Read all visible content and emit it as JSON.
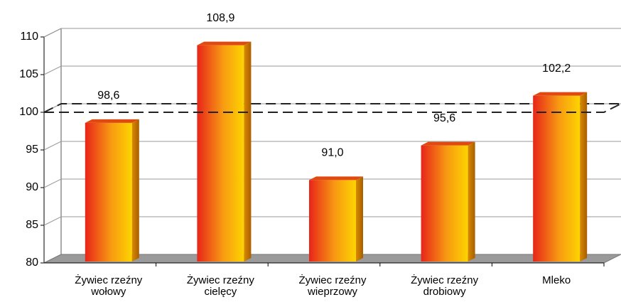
{
  "chart_data": {
    "type": "bar3d",
    "categories": [
      "Żywiec rzeźny wołowy",
      "Żywiec rzeźny cielęcy",
      "Żywiec rzeźny wieprzowy",
      "Żywiec rzeźny drobiowy",
      "Mleko"
    ],
    "values": [
      98.6,
      108.9,
      91.0,
      95.6,
      102.2
    ],
    "value_labels": [
      "98,6",
      "108,9",
      "91,0",
      "95,6",
      "102,2"
    ],
    "ylim": [
      80,
      110
    ],
    "yticks": [
      80,
      85,
      90,
      95,
      100,
      105,
      110
    ],
    "grid": true,
    "reference_line": 100
  }
}
